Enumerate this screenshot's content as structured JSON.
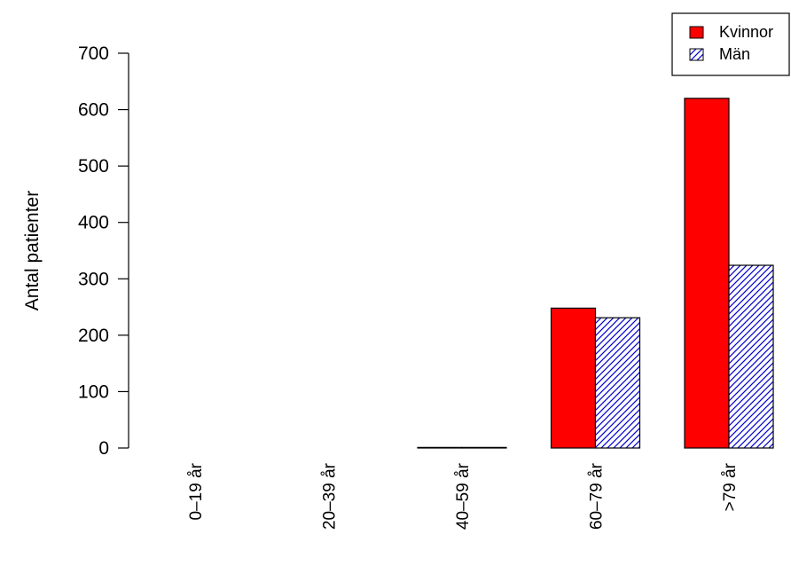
{
  "chart_data": {
    "type": "bar",
    "title": "",
    "xlabel": "",
    "ylabel": "Antal patienter",
    "categories": [
      "0–19 år",
      "20–39 år",
      "40–59 år",
      "60–79 år",
      ">79 år"
    ],
    "series": [
      {
        "name": "Kvinnor",
        "values": [
          0,
          0,
          1,
          248,
          620
        ],
        "color": "#ff0000",
        "fill": "solid"
      },
      {
        "name": "Män",
        "values": [
          0,
          0,
          1,
          231,
          324
        ],
        "color": "#0000cc",
        "fill": "hatched"
      }
    ],
    "ylim": [
      0,
      700
    ],
    "yticks": [
      0,
      100,
      200,
      300,
      400,
      500,
      600,
      700
    ],
    "grid": false,
    "legend_position": "top-right"
  }
}
